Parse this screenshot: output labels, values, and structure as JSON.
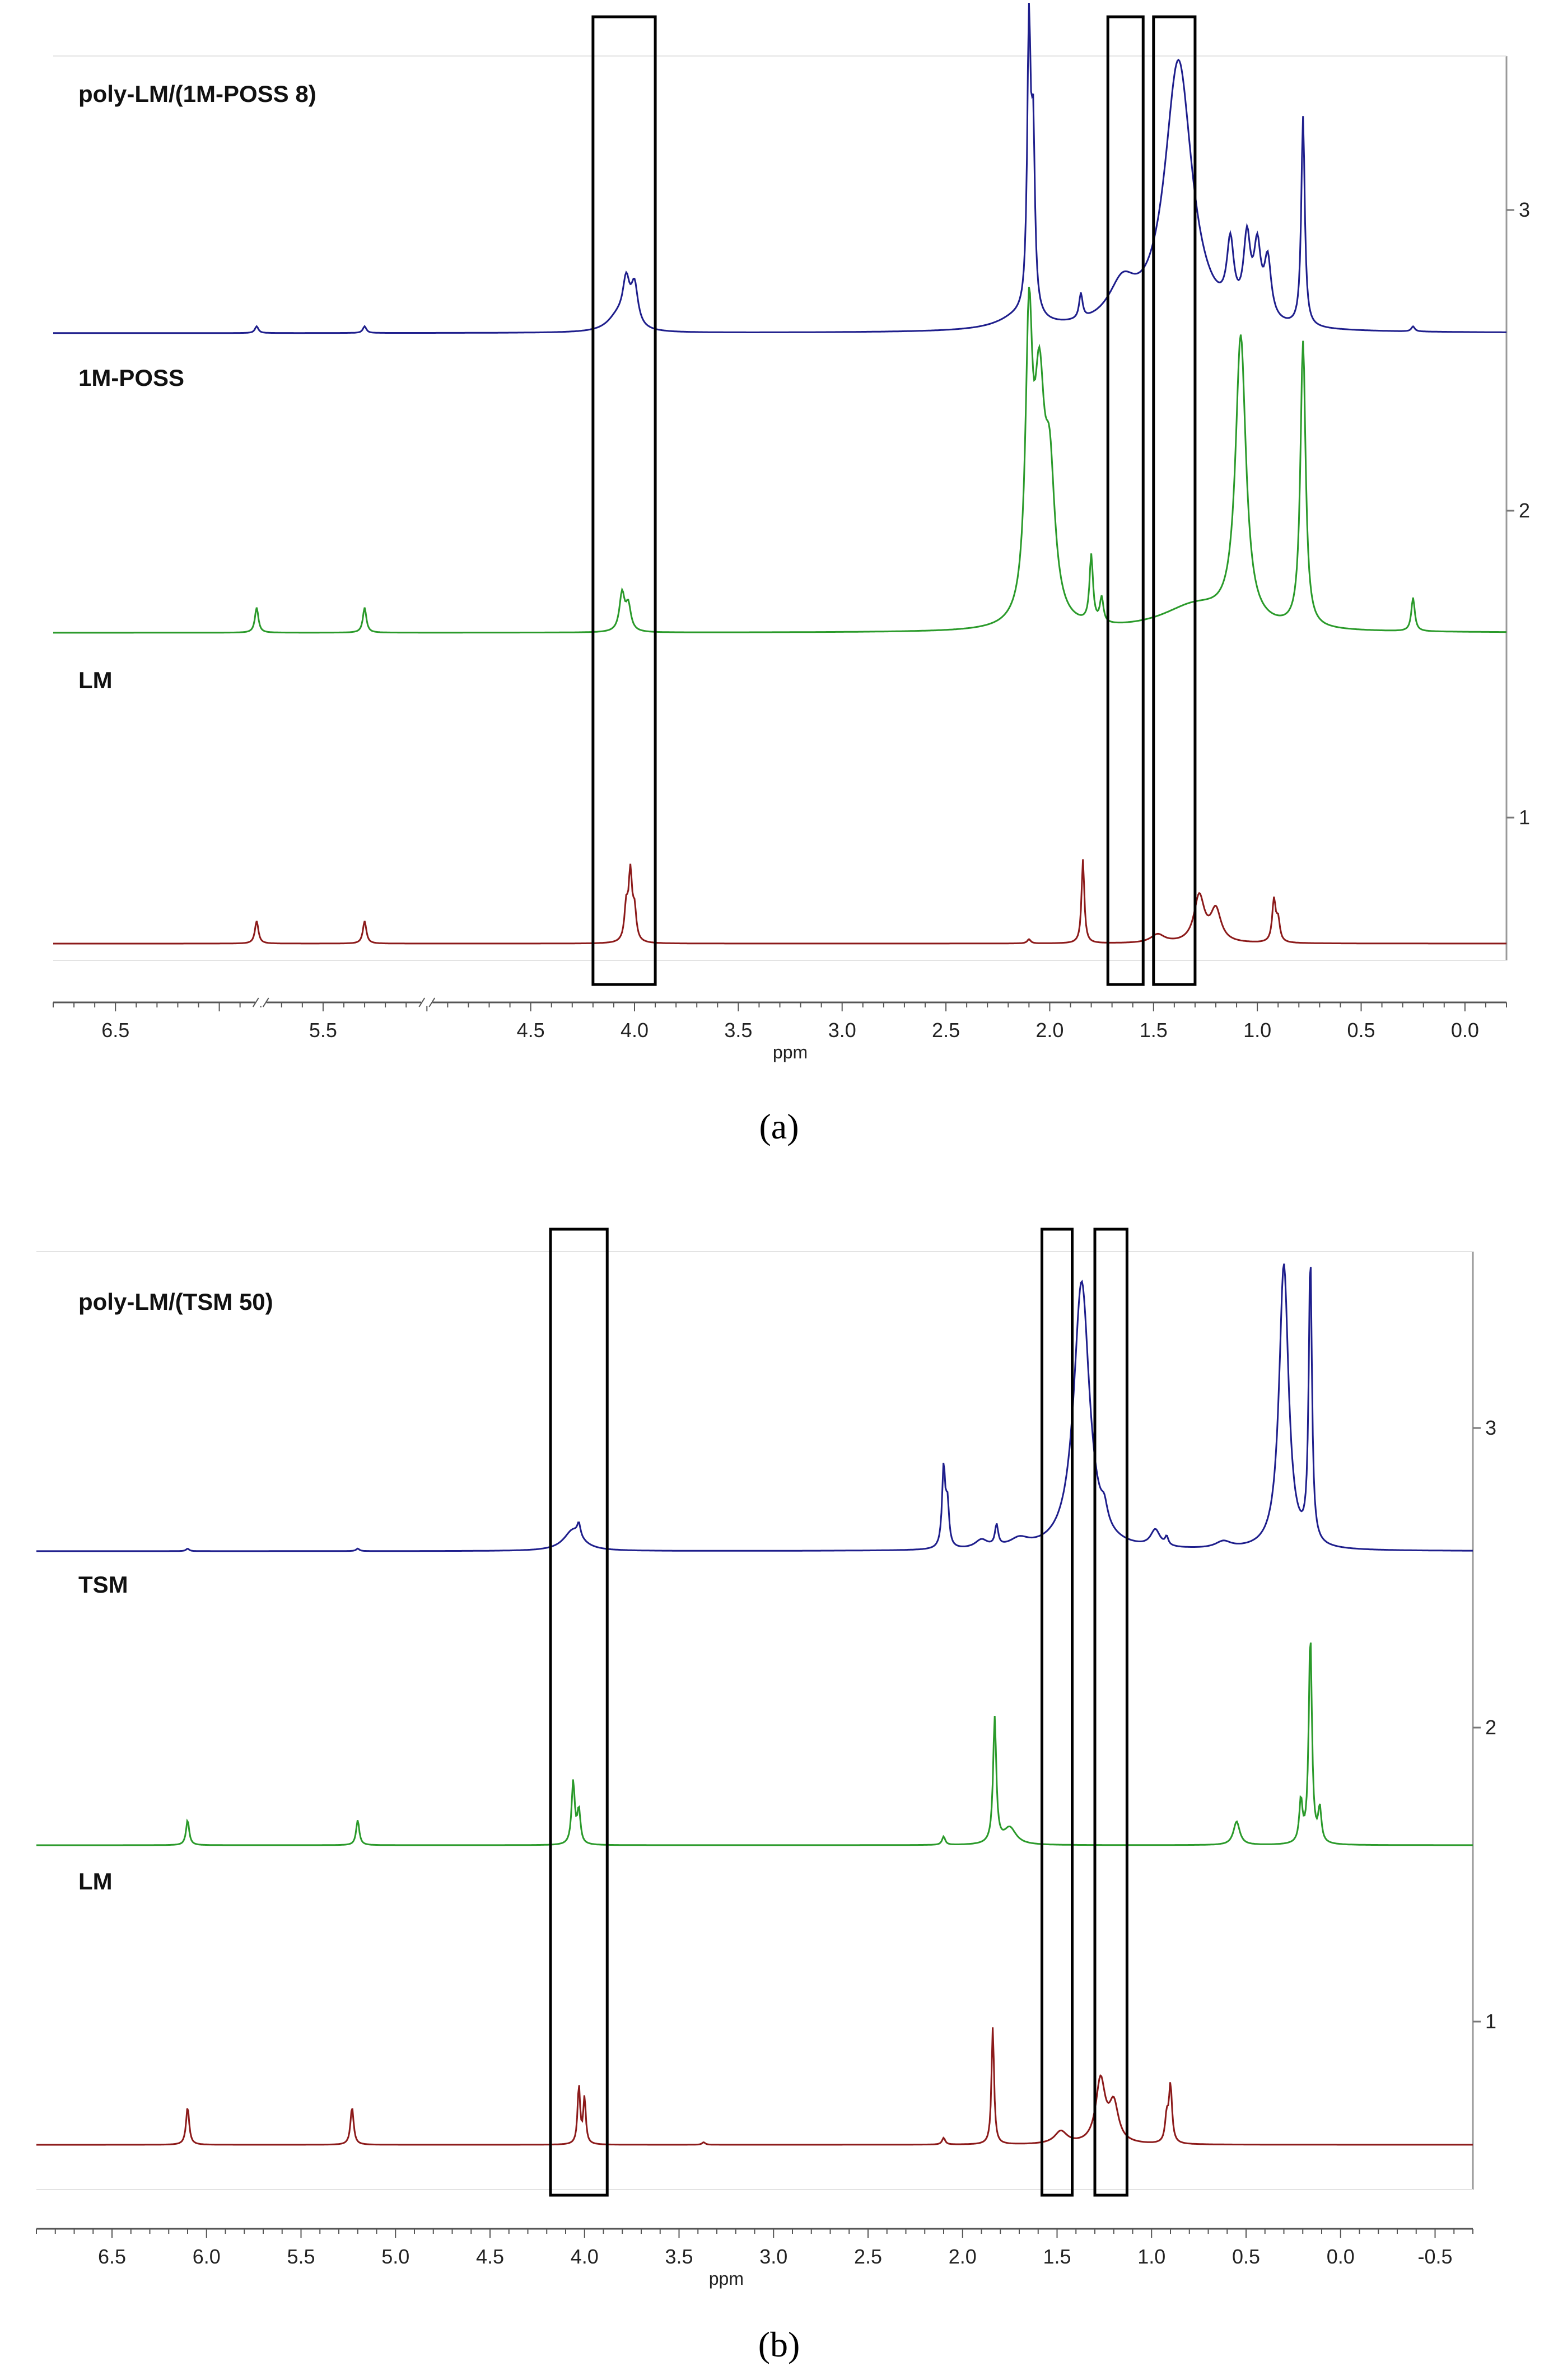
{
  "colors": {
    "top": "#1e1e8c",
    "middle": "#2a9a2a",
    "bottom": "#8c1a1a",
    "box": "#000000",
    "axis": "#555555"
  },
  "chart_data": [
    {
      "type": "line",
      "panel": "a",
      "caption": "(a)",
      "xlabel": "ppm",
      "x_direction": "reversed",
      "xlim": [
        6.8,
        -0.2
      ],
      "x_ticks": [
        "6.5",
        "5.5",
        "4.5",
        "4.0",
        "3.5",
        "3.0",
        "2.5",
        "2.0",
        "1.5",
        "1.0",
        "0.5",
        "0.0"
      ],
      "x_tick_values": [
        6.5,
        5.5,
        4.5,
        4.0,
        3.5,
        3.0,
        2.5,
        2.0,
        1.5,
        1.0,
        0.5,
        0.0
      ],
      "axis_breaks": [
        5.8,
        5.0
      ],
      "right_axis_ticks": [
        "1",
        "2",
        "3"
      ],
      "highlight_boxes_ppm": [
        [
          4.2,
          3.9
        ],
        [
          1.72,
          1.55
        ],
        [
          1.5,
          1.3
        ]
      ],
      "series": [
        {
          "name": "poly-LM/(1M-POSS 8)",
          "color_key": "top",
          "peaks": [
            {
              "ppm": 5.82,
              "height": 0.08
            },
            {
              "ppm": 5.3,
              "height": 0.08
            },
            {
              "ppm": 4.08,
              "height": 0.18,
              "width": 0.06
            },
            {
              "ppm": 4.04,
              "height": 0.5,
              "width": 0.02
            },
            {
              "ppm": 4.0,
              "height": 0.48,
              "width": 0.02
            },
            {
              "ppm": 2.15,
              "height": 0.15,
              "width": 0.12
            },
            {
              "ppm": 2.1,
              "height": 3.4,
              "width": 0.01
            },
            {
              "ppm": 2.08,
              "height": 2.0,
              "width": 0.01
            },
            {
              "ppm": 1.85,
              "height": 0.3,
              "width": 0.01
            },
            {
              "ppm": 1.65,
              "height": 0.45,
              "width": 0.08
            },
            {
              "ppm": 1.38,
              "height": 3.2,
              "width": 0.08
            },
            {
              "ppm": 1.13,
              "height": 0.8,
              "width": 0.02
            },
            {
              "ppm": 1.05,
              "height": 0.9,
              "width": 0.02
            },
            {
              "ppm": 1.0,
              "height": 0.8,
              "width": 0.02
            },
            {
              "ppm": 0.95,
              "height": 0.7,
              "width": 0.02
            },
            {
              "ppm": 0.78,
              "height": 2.5,
              "width": 0.01
            },
            {
              "ppm": 0.25,
              "height": 0.06,
              "width": 0.01
            }
          ]
        },
        {
          "name": "1M-POSS",
          "color_key": "middle",
          "peaks": [
            {
              "ppm": 5.82,
              "height": 0.3
            },
            {
              "ppm": 5.3,
              "height": 0.3
            },
            {
              "ppm": 4.06,
              "height": 0.45,
              "width": 0.015
            },
            {
              "ppm": 4.03,
              "height": 0.3,
              "width": 0.015
            },
            {
              "ppm": 2.1,
              "height": 3.3,
              "width": 0.02
            },
            {
              "ppm": 2.05,
              "height": 2.5,
              "width": 0.03
            },
            {
              "ppm": 2.0,
              "height": 1.6,
              "width": 0.03
            },
            {
              "ppm": 1.8,
              "height": 0.8,
              "width": 0.01
            },
            {
              "ppm": 1.75,
              "height": 0.3,
              "width": 0.01
            },
            {
              "ppm": 1.3,
              "height": 0.3,
              "width": 0.2
            },
            {
              "ppm": 1.08,
              "height": 3.4,
              "width": 0.03
            },
            {
              "ppm": 0.78,
              "height": 3.4,
              "width": 0.015
            },
            {
              "ppm": 0.25,
              "height": 0.4,
              "width": 0.01
            }
          ]
        },
        {
          "name": "LM",
          "color_key": "bottom",
          "peaks": [
            {
              "ppm": 5.82,
              "height": 0.27
            },
            {
              "ppm": 5.3,
              "height": 0.27
            },
            {
              "ppm": 4.04,
              "height": 0.4,
              "width": 0.01
            },
            {
              "ppm": 4.02,
              "height": 0.8,
              "width": 0.01
            },
            {
              "ppm": 4.0,
              "height": 0.35,
              "width": 0.01
            },
            {
              "ppm": 2.1,
              "height": 0.05,
              "width": 0.01
            },
            {
              "ppm": 1.84,
              "height": 1.0,
              "width": 0.008
            },
            {
              "ppm": 1.48,
              "height": 0.1,
              "width": 0.04
            },
            {
              "ppm": 1.28,
              "height": 0.55,
              "width": 0.03
            },
            {
              "ppm": 1.2,
              "height": 0.38,
              "width": 0.03
            },
            {
              "ppm": 0.92,
              "height": 0.5,
              "width": 0.01
            },
            {
              "ppm": 0.9,
              "height": 0.25,
              "width": 0.01
            }
          ]
        }
      ]
    },
    {
      "type": "line",
      "panel": "b",
      "caption": "(b)",
      "xlabel": "ppm",
      "x_direction": "reversed",
      "xlim": [
        6.9,
        -0.7
      ],
      "x_ticks": [
        "6.5",
        "6.0",
        "5.5",
        "5.0",
        "4.5",
        "4.0",
        "3.5",
        "3.0",
        "2.5",
        "2.0",
        "1.5",
        "1.0",
        "0.5",
        "0.0",
        "-0.5"
      ],
      "x_tick_values": [
        6.5,
        6.0,
        5.5,
        5.0,
        4.5,
        4.0,
        3.5,
        3.0,
        2.5,
        2.0,
        1.5,
        1.0,
        0.5,
        0.0,
        -0.5
      ],
      "axis_breaks": [],
      "right_axis_ticks": [
        "1",
        "2",
        "3"
      ],
      "highlight_boxes_ppm": [
        [
          4.18,
          3.88
        ],
        [
          1.58,
          1.42
        ],
        [
          1.3,
          1.13
        ]
      ],
      "series": [
        {
          "name": "poly-LM/(TSM 50)",
          "color_key": "top",
          "peaks": [
            {
              "ppm": 6.1,
              "height": 0.03
            },
            {
              "ppm": 5.2,
              "height": 0.03
            },
            {
              "ppm": 4.06,
              "height": 0.25,
              "width": 0.06
            },
            {
              "ppm": 4.03,
              "height": 0.15,
              "width": 0.01
            },
            {
              "ppm": 2.1,
              "height": 0.95,
              "width": 0.01
            },
            {
              "ppm": 2.08,
              "height": 0.5,
              "width": 0.01
            },
            {
              "ppm": 1.9,
              "height": 0.1,
              "width": 0.04
            },
            {
              "ppm": 1.82,
              "height": 0.25,
              "width": 0.01
            },
            {
              "ppm": 1.7,
              "height": 0.1,
              "width": 0.06
            },
            {
              "ppm": 1.37,
              "height": 3.2,
              "width": 0.05
            },
            {
              "ppm": 1.25,
              "height": 0.2,
              "width": 0.02
            },
            {
              "ppm": 0.98,
              "height": 0.2,
              "width": 0.03
            },
            {
              "ppm": 0.92,
              "height": 0.1,
              "width": 0.01
            },
            {
              "ppm": 0.62,
              "height": 0.08,
              "width": 0.05
            },
            {
              "ppm": 0.3,
              "height": 3.4,
              "width": 0.03
            },
            {
              "ppm": 0.16,
              "height": 3.4,
              "width": 0.01
            }
          ]
        },
        {
          "name": "TSM",
          "color_key": "middle",
          "peaks": [
            {
              "ppm": 6.1,
              "height": 0.3
            },
            {
              "ppm": 5.2,
              "height": 0.3
            },
            {
              "ppm": 4.06,
              "height": 0.75,
              "width": 0.01
            },
            {
              "ppm": 4.03,
              "height": 0.4,
              "width": 0.01
            },
            {
              "ppm": 2.1,
              "height": 0.1,
              "width": 0.01
            },
            {
              "ppm": 1.83,
              "height": 1.5,
              "width": 0.01
            },
            {
              "ppm": 1.75,
              "height": 0.2,
              "width": 0.04
            },
            {
              "ppm": 0.55,
              "height": 0.28,
              "width": 0.02
            },
            {
              "ppm": 0.21,
              "height": 0.5,
              "width": 0.01
            },
            {
              "ppm": 0.16,
              "height": 2.5,
              "width": 0.01
            },
            {
              "ppm": 0.11,
              "height": 0.4,
              "width": 0.01
            }
          ]
        },
        {
          "name": "LM",
          "color_key": "bottom",
          "peaks": [
            {
              "ppm": 6.1,
              "height": 0.45
            },
            {
              "ppm": 5.23,
              "height": 0.45
            },
            {
              "ppm": 4.03,
              "height": 0.7,
              "width": 0.008
            },
            {
              "ppm": 4.0,
              "height": 0.55,
              "width": 0.008
            },
            {
              "ppm": 3.37,
              "height": 0.03,
              "width": 0.01
            },
            {
              "ppm": 2.1,
              "height": 0.08,
              "width": 0.01
            },
            {
              "ppm": 1.84,
              "height": 1.4,
              "width": 0.008
            },
            {
              "ppm": 1.48,
              "height": 0.15,
              "width": 0.04
            },
            {
              "ppm": 1.27,
              "height": 0.75,
              "width": 0.03
            },
            {
              "ppm": 1.2,
              "height": 0.45,
              "width": 0.03
            },
            {
              "ppm": 0.9,
              "height": 0.68,
              "width": 0.01
            },
            {
              "ppm": 0.92,
              "height": 0.3,
              "width": 0.01
            }
          ]
        }
      ]
    }
  ]
}
